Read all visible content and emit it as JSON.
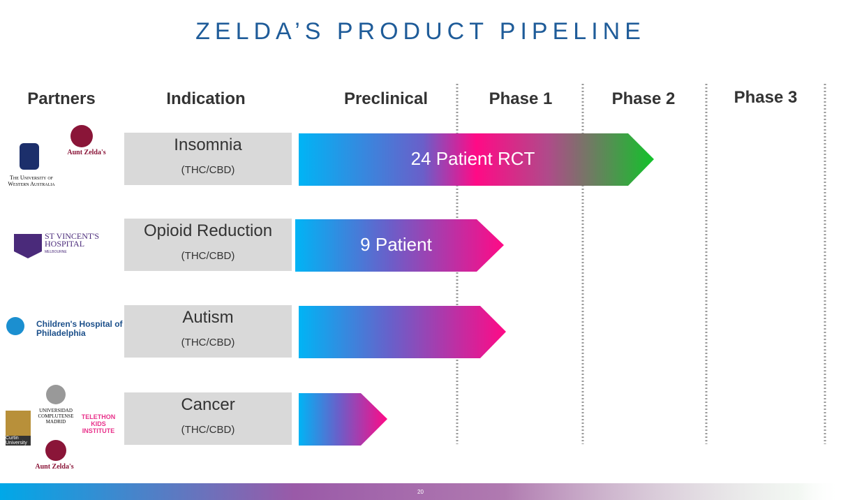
{
  "title": "ZELDA’S PRODUCT PIPELINE",
  "headers": [
    "Partners",
    "Indication",
    "Preclinical",
    "Phase 1",
    "Phase 2",
    "Phase 3"
  ],
  "rows": [
    {
      "partners": [
        "Aunt Zelda's",
        "The University of Western Australia"
      ],
      "indication": "Insomnia",
      "compound": "(THC/CBD)",
      "bar_label": "24 Patient RCT"
    },
    {
      "partners": [
        "ST VINCENT'S HOSPITAL",
        "MELBOURNE"
      ],
      "indication": "Opioid Reduction",
      "compound": "(THC/CBD)",
      "bar_label": "9 Patient"
    },
    {
      "partners": [
        "Children's Hospital of Philadelphia"
      ],
      "indication": "Autism",
      "compound": "(THC/CBD)"
    },
    {
      "partners": [
        "UNIVERSIDAD COMPLUTENSE MADRID",
        "TELETHON KIDS INSTITUTE",
        "Curtin University",
        "Aunt Zelda's"
      ],
      "indication": "Cancer",
      "compound": "(THC/CBD)"
    }
  ],
  "page_number": "20"
}
